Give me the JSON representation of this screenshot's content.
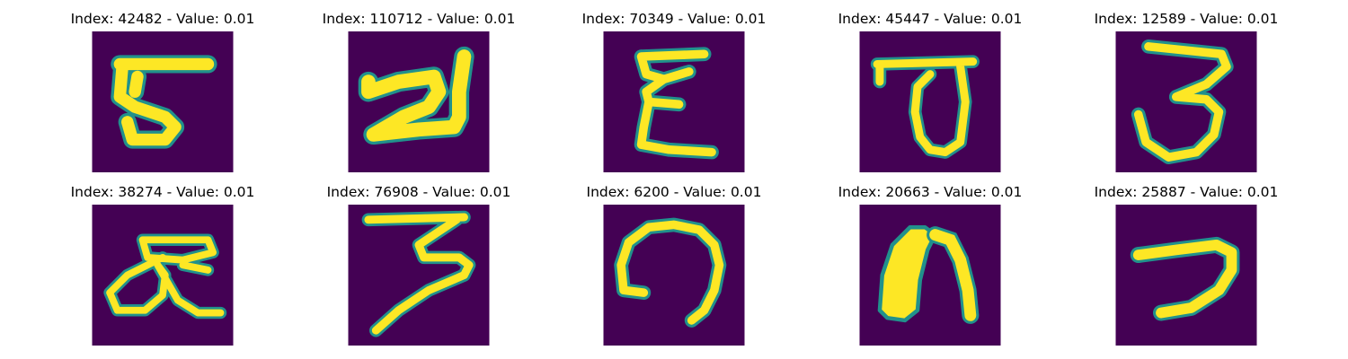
{
  "colors": {
    "background": "#440154",
    "stroke": "#fde725",
    "edge": "#21918c"
  },
  "panels": [
    {
      "title": "Index: 42482 - Value: 0.01",
      "glyph": "c-bar"
    },
    {
      "title": "Index: 110712 - Value: 0.01",
      "glyph": "z-shape"
    },
    {
      "title": "Index: 70349 - Value: 0.01",
      "glyph": "epsilon"
    },
    {
      "title": "Index: 45447 - Value: 0.01",
      "glyph": "loop-bar"
    },
    {
      "title": "Index: 12589 - Value: 0.01",
      "glyph": "three"
    },
    {
      "title": "Index: 38274 - Value: 0.01",
      "glyph": "double-loop"
    },
    {
      "title": "Index: 76908 - Value: 0.01",
      "glyph": "three-tail"
    },
    {
      "title": "Index: 6200 - Value: 0.01",
      "glyph": "arch-open"
    },
    {
      "title": "Index: 20663 - Value: 0.01",
      "glyph": "arch-solid"
    },
    {
      "title": "Index: 25887 - Value: 0.01",
      "glyph": "seven"
    }
  ]
}
